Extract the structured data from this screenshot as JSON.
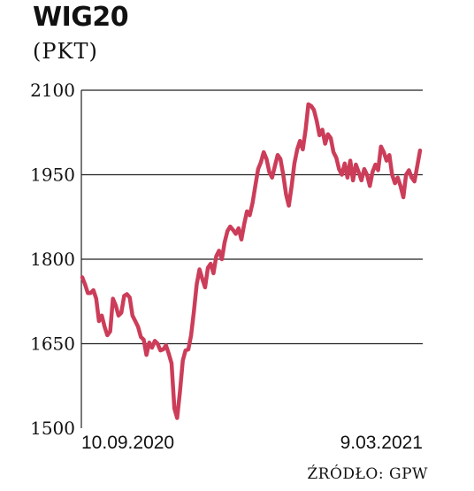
{
  "header": {
    "title": "WIG20",
    "subtitle": "(PKT)"
  },
  "footer": {
    "source": "ŹRÓDŁO: GPW"
  },
  "colors": {
    "line": "#cc3d59",
    "grid": "#222222",
    "text": "#111111"
  },
  "chart_data": {
    "type": "line",
    "title": "WIG20",
    "ylabel": "(PKT)",
    "xlabel": "",
    "ylim": [
      1500,
      2100
    ],
    "yticks": [
      1500,
      1650,
      1800,
      1950,
      2100
    ],
    "grid": true,
    "x_start_label": "10.09.2020",
    "x_end_label": "9.03.2021",
    "series": [
      {
        "values": [
          1768,
          1755,
          1740,
          1740,
          1745,
          1730,
          1690,
          1700,
          1680,
          1665,
          1672,
          1730,
          1718,
          1700,
          1705,
          1735,
          1738,
          1732,
          1700,
          1690,
          1680,
          1662,
          1657,
          1630,
          1652,
          1643,
          1655,
          1650,
          1638,
          1640,
          1647,
          1632,
          1615,
          1535,
          1518,
          1565,
          1620,
          1638,
          1640,
          1665,
          1708,
          1755,
          1782,
          1765,
          1750,
          1785,
          1792,
          1775,
          1805,
          1815,
          1800,
          1830,
          1850,
          1858,
          1852,
          1845,
          1855,
          1835,
          1862,
          1885,
          1878,
          1900,
          1930,
          1960,
          1972,
          1990,
          1978,
          1955,
          1945,
          1965,
          1985,
          1978,
          1950,
          1915,
          1895,
          1930,
          1970,
          1995,
          2010,
          1995,
          2030,
          2075,
          2072,
          2065,
          2045,
          2020,
          2030,
          2005,
          2022,
          2015,
          1990,
          1980,
          1960,
          1950,
          1970,
          1945,
          1975,
          1940,
          1968,
          1955,
          1940,
          1960,
          1950,
          1930,
          1955,
          1968,
          1958,
          2000,
          1990,
          1975,
          1985,
          1950,
          1935,
          1945,
          1930,
          1910,
          1950,
          1958,
          1945,
          1938,
          1965,
          1993
        ]
      }
    ]
  }
}
